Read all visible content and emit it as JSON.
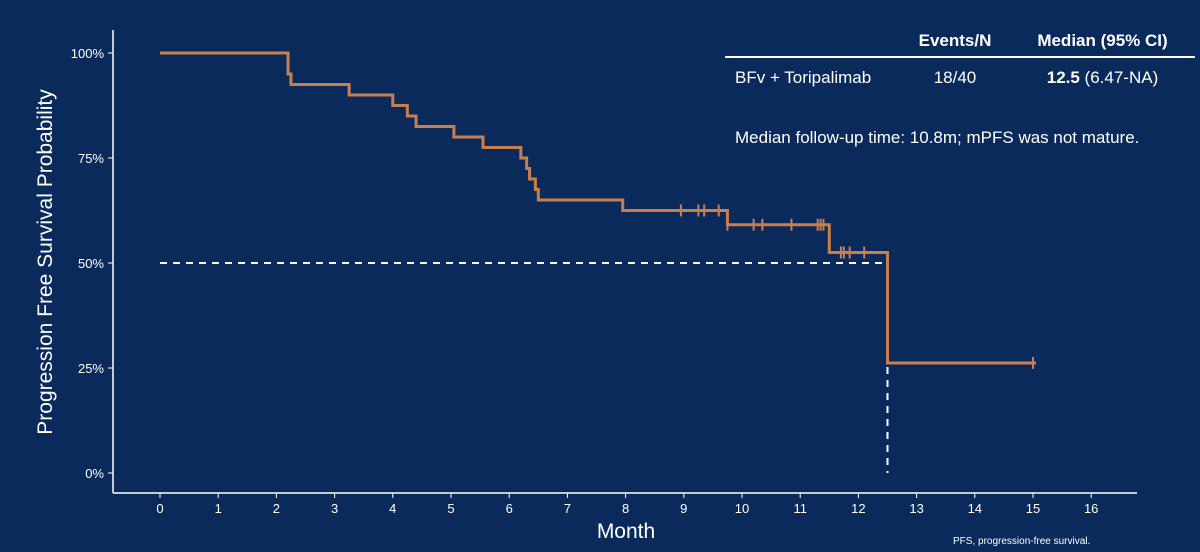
{
  "chart_data": {
    "type": "line",
    "subtype": "kaplan-meier",
    "xlabel": "Month",
    "ylabel": "Progression Free Survival Probability",
    "xlim": [
      0,
      16.5
    ],
    "ylim": [
      0,
      1.05
    ],
    "x_ticks": [
      0,
      1,
      2,
      3,
      4,
      5,
      6,
      7,
      8,
      9,
      10,
      11,
      12,
      13,
      14,
      15,
      16
    ],
    "y_ticks": [
      0,
      0.25,
      0.5,
      0.75,
      1.0
    ],
    "y_tick_labels": [
      "0%",
      "25%",
      "50%",
      "75%",
      "100%"
    ],
    "grid": false,
    "series": [
      {
        "name": "BFv + Toripalimab",
        "color": "#c87f4e",
        "steps": [
          [
            0,
            1.0
          ],
          [
            2.2,
            0.95
          ],
          [
            2.25,
            0.925
          ],
          [
            3.25,
            0.9
          ],
          [
            4.0,
            0.875
          ],
          [
            4.25,
            0.85
          ],
          [
            4.4,
            0.825
          ],
          [
            5.05,
            0.8
          ],
          [
            5.55,
            0.775
          ],
          [
            6.2,
            0.75
          ],
          [
            6.3,
            0.725
          ],
          [
            6.35,
            0.7
          ],
          [
            6.45,
            0.675
          ],
          [
            6.5,
            0.65
          ],
          [
            7.95,
            0.625
          ],
          [
            9.75,
            0.591
          ],
          [
            11.5,
            0.525
          ],
          [
            12.5,
            0.262
          ]
        ],
        "end_x": 15.05,
        "censor_x": [
          8.95,
          9.25,
          9.35,
          9.6,
          9.75,
          10.2,
          10.35,
          10.85,
          11.3,
          11.35,
          11.4,
          11.7,
          11.75,
          11.85,
          12.1,
          15.0
        ],
        "vertical_censor_x": 12.5
      }
    ],
    "median_reference": {
      "y": 0.5,
      "x": 12.5,
      "color": "#ffffff"
    }
  },
  "legend": {
    "header_events": "Events/N",
    "header_median": "Median (95% CI)",
    "row_name": "BFv + Toripalimab",
    "row_events": "18/40",
    "row_median_value": "12.5",
    "row_median_ci": " (6.47-NA)"
  },
  "note": "Median follow-up time: 10.8m; mPFS was not mature.",
  "footnote": "PFS, progression-free survival.",
  "colors": {
    "background": "#0b2a5c",
    "curve": "#c87f4e",
    "axis": "#ffffff"
  }
}
